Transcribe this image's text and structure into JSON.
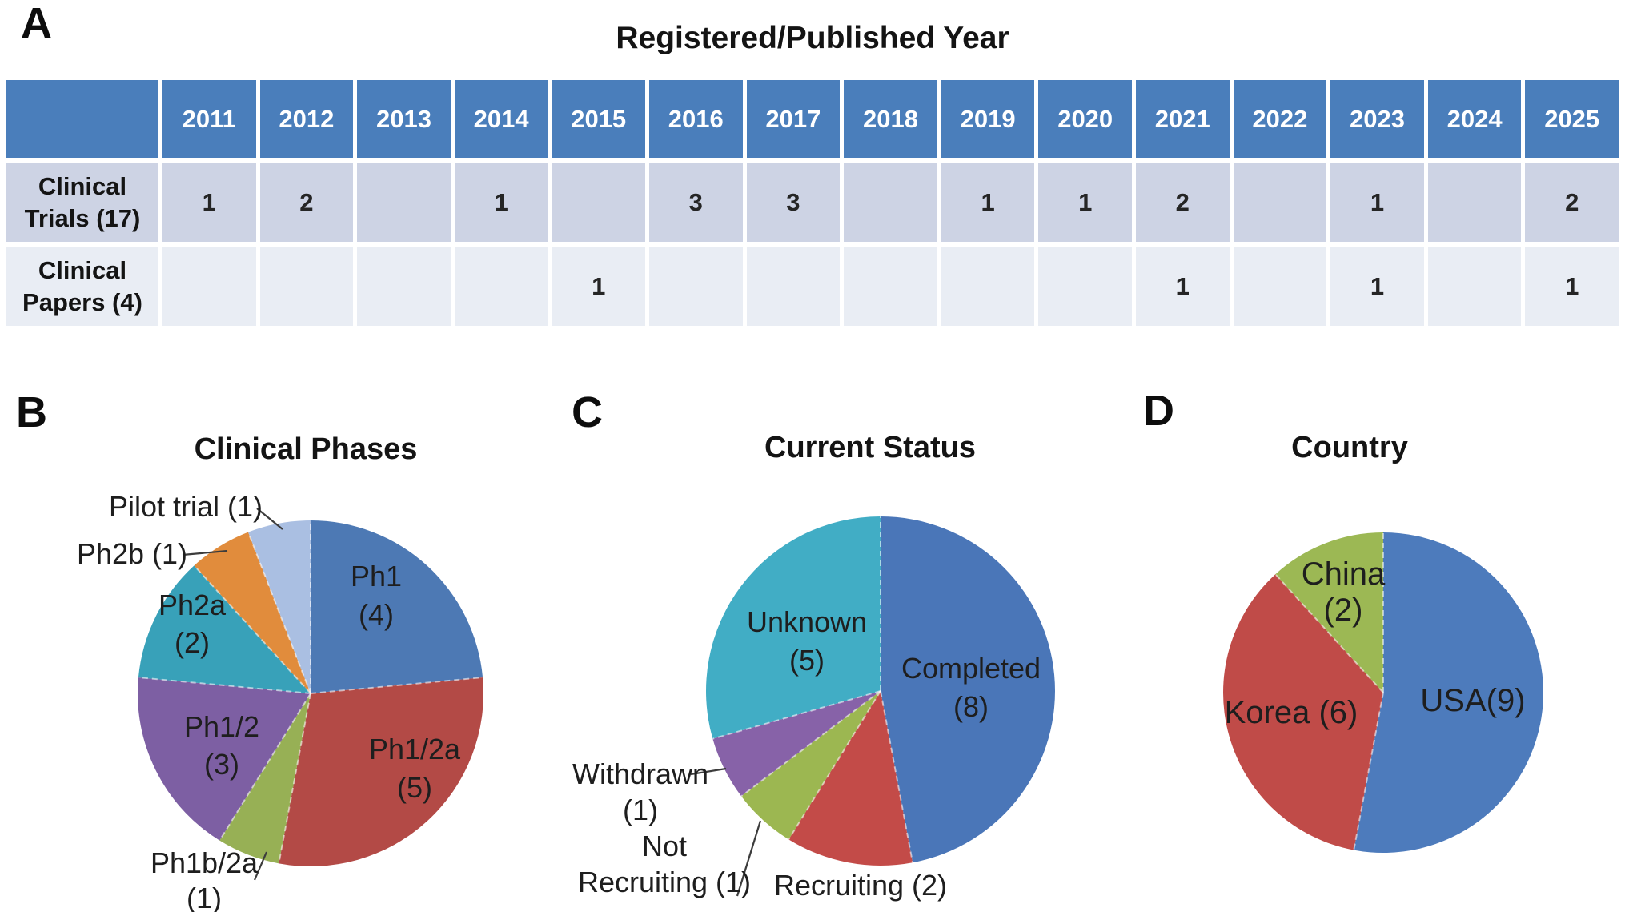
{
  "figure_title": "Registered/Published Year",
  "panels": {
    "a": {
      "letter": "A"
    },
    "b": {
      "letter": "B"
    },
    "c": {
      "letter": "C"
    },
    "d": {
      "letter": "D"
    }
  },
  "table": {
    "years": [
      "2011",
      "2012",
      "2013",
      "2014",
      "2015",
      "2016",
      "2017",
      "2018",
      "2019",
      "2020",
      "2021",
      "2022",
      "2023",
      "2024",
      "2025"
    ],
    "rows": [
      {
        "label": "Clinical Trials (17)",
        "label_lines": [
          "Clinical",
          "Trials (17)"
        ],
        "values": [
          "1",
          "2",
          "",
          "1",
          "",
          "3",
          "3",
          "",
          "1",
          "1",
          "2",
          "",
          "1",
          "",
          "2"
        ]
      },
      {
        "label": "Clinical Papers (4)",
        "label_lines": [
          "Clinical",
          "Papers (4)"
        ],
        "values": [
          "",
          "",
          "",
          "",
          "1",
          "",
          "",
          "",
          "",
          "",
          "1",
          "",
          "1",
          "",
          "1"
        ]
      }
    ],
    "colors": {
      "header_bg": "#4a7ebb",
      "header_text": "#ffffff",
      "row1_bg": "#cdd3e4",
      "row2_bg": "#e9edf4"
    }
  },
  "chart_data": [
    {
      "panel": "B",
      "type": "pie",
      "title": "Clinical Phases",
      "total": 17,
      "start_angle_deg": 0,
      "direction": "clockwise",
      "legend": "none",
      "slices": [
        {
          "label": "Ph1",
          "value": 4,
          "color": "#4d79b4",
          "label_lines": [
            "Ph1",
            "(4)"
          ],
          "placement": "inside"
        },
        {
          "label": "Ph1/2a",
          "value": 5,
          "color": "#b34a46",
          "label_lines": [
            "Ph1/2a",
            "(5)"
          ],
          "placement": "inside"
        },
        {
          "label": "Ph1b/2a",
          "value": 1,
          "color": "#97b055",
          "label_lines": [
            "Ph1b/2a",
            "(1)"
          ],
          "placement": "outside"
        },
        {
          "label": "Ph1/2",
          "value": 3,
          "color": "#7d5fa3",
          "label_lines": [
            "Ph1/2",
            "(3)"
          ],
          "placement": "inside"
        },
        {
          "label": "Ph2a",
          "value": 2,
          "color": "#38a1b9",
          "label_lines": [
            "Ph2a",
            "(2)"
          ],
          "placement": "inside"
        },
        {
          "label": "Ph2b",
          "value": 1,
          "color": "#e18c3c",
          "label_lines": [
            "Ph2b (1)"
          ],
          "placement": "outside"
        },
        {
          "label": "Pilot trial",
          "value": 1,
          "color": "#aabfe2",
          "label_lines": [
            "Pilot trial (1)"
          ],
          "placement": "outside"
        }
      ]
    },
    {
      "panel": "C",
      "type": "pie",
      "title": "Current Status",
      "total": 17,
      "start_angle_deg": 0,
      "direction": "clockwise",
      "legend": "none",
      "slices": [
        {
          "label": "Completed",
          "value": 8,
          "color": "#4a76b8",
          "label_lines": [
            "Completed",
            "(8)"
          ],
          "placement": "inside"
        },
        {
          "label": "Recruiting",
          "value": 2,
          "color": "#c34b48",
          "label_lines": [
            "Recruiting (2)"
          ],
          "placement": "outside"
        },
        {
          "label": "Not Recruiting",
          "value": 1,
          "color": "#9cb751",
          "label_lines": [
            "Not",
            "Recruiting (1)"
          ],
          "placement": "outside"
        },
        {
          "label": "Withdrawn",
          "value": 1,
          "color": "#8762a8",
          "label_lines": [
            "Withdrawn",
            "(1)"
          ],
          "placement": "outside"
        },
        {
          "label": "Unknown",
          "value": 5,
          "color": "#41adc5",
          "label_lines": [
            "Unknown",
            "(5)"
          ],
          "placement": "inside"
        }
      ]
    },
    {
      "panel": "D",
      "type": "pie",
      "title": "Country",
      "total": 17,
      "start_angle_deg": 0,
      "direction": "clockwise",
      "legend": "none",
      "slices": [
        {
          "label": "USA",
          "value": 9,
          "color": "#4d7bbc",
          "label_lines": [
            "USA(9)"
          ],
          "placement": "inside"
        },
        {
          "label": "Korea",
          "value": 6,
          "color": "#c04b48",
          "label_lines": [
            "Korea (6)"
          ],
          "placement": "inside"
        },
        {
          "label": "China",
          "value": 2,
          "color": "#9cb854",
          "label_lines": [
            "China",
            "(2)"
          ],
          "placement": "inside"
        }
      ]
    }
  ]
}
